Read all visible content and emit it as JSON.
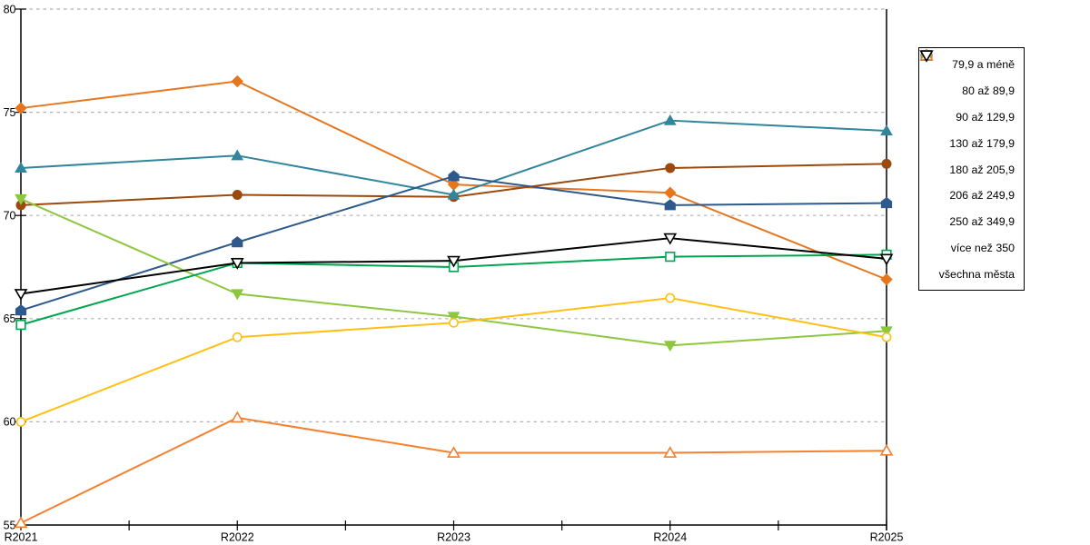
{
  "chart_data": {
    "type": "line",
    "title": "",
    "x_categories": [
      "R2021",
      "R2022",
      "R2023",
      "R2024",
      "R2025"
    ],
    "y_ticks": [
      55,
      60,
      65,
      70,
      75,
      80
    ],
    "y_tick_labels": [
      "55",
      "60",
      "65",
      "70",
      "75",
      "80"
    ],
    "ylim": [
      55,
      80
    ],
    "grid": "horizontal-dashed",
    "legend_position": "right",
    "axis_color": "#000000",
    "grid_color": "#b1b1b1",
    "background": "#ffffff",
    "series": [
      {
        "name": "79,9 a méně",
        "marker": "diamond",
        "fill": "solid",
        "color": "#E5761E",
        "values": [
          75.2,
          76.5,
          71.5,
          71.1,
          66.9
        ]
      },
      {
        "name": "80 až 89,9",
        "marker": "circle",
        "fill": "solid",
        "color": "#9C490D",
        "values": [
          70.5,
          71.0,
          70.9,
          72.3,
          72.5
        ]
      },
      {
        "name": "90 až 129,9",
        "marker": "triangle-up",
        "fill": "solid",
        "color": "#31859C",
        "values": [
          72.3,
          72.9,
          71.0,
          74.6,
          74.1
        ]
      },
      {
        "name": "130 až 179,9",
        "marker": "pentagon",
        "fill": "solid",
        "color": "#2E598C",
        "values": [
          65.4,
          68.7,
          71.9,
          70.5,
          70.6
        ]
      },
      {
        "name": "180 až 205,9",
        "marker": "triangle-down",
        "fill": "solid",
        "color": "#8DC63F",
        "values": [
          70.8,
          66.2,
          65.1,
          63.7,
          64.4
        ]
      },
      {
        "name": "206 až 249,9",
        "marker": "square",
        "fill": "open",
        "color": "#00A64F",
        "values": [
          64.7,
          67.7,
          67.5,
          68.0,
          68.1
        ]
      },
      {
        "name": "250 až 349,9",
        "marker": "circle",
        "fill": "open",
        "color": "#FFC013",
        "values": [
          60.0,
          64.1,
          64.8,
          66.0,
          64.1
        ]
      },
      {
        "name": "více než 350",
        "marker": "triangle-up",
        "fill": "open",
        "color": "#F5812E",
        "values": [
          55.1,
          60.2,
          58.5,
          58.5,
          58.6
        ]
      },
      {
        "name": "všechna města",
        "marker": "triangle-down",
        "fill": "open",
        "color": "#000000",
        "values": [
          66.2,
          67.7,
          67.8,
          68.9,
          67.9
        ]
      }
    ]
  }
}
